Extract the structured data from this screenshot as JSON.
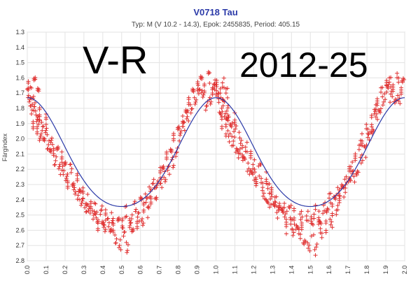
{
  "chart_data": {
    "type": "scatter",
    "title": "V0718 Tau",
    "subtitle": "Typ: M (V 10.2 - 14.3), Epok: 2455835, Period: 405.15",
    "xlabel": "",
    "ylabel": "Färgindex",
    "xlim": [
      0.0,
      2.0
    ],
    "ylim": [
      2.8,
      1.3
    ],
    "y_inverted": true,
    "x_ticks": [
      "0.0",
      "0.1",
      "0.2",
      "0.3",
      "0.4",
      "0.5",
      "0.6",
      "0.7",
      "0.8",
      "0.9",
      "1.0",
      "1.1",
      "1.2",
      "1.3",
      "1.4",
      "1.5",
      "1.6",
      "1.7",
      "1.8",
      "1.9",
      "2.0"
    ],
    "y_ticks": [
      "1.3",
      "1.4",
      "1.5",
      "1.6",
      "1.7",
      "1.8",
      "1.9",
      "2.0",
      "2.1",
      "2.2",
      "2.3",
      "2.4",
      "2.5",
      "2.6",
      "2.7",
      "2.8"
    ],
    "grid": true,
    "marker_color": "#e03030",
    "fit_color": "#2b3aa8",
    "fit_curve": {
      "mean": 2.13,
      "amplitude": 0.4,
      "max_phase": 0.0,
      "note_phase": "brightest color index near phase 0.0/1.0/2.0, reddest near 0.53/1.53"
    },
    "series": [
      {
        "marker": "+",
        "phases_first_cycle": [
          0.0,
          0.01,
          0.01,
          0.02,
          0.02,
          0.03,
          0.03,
          0.04,
          0.04,
          0.05,
          0.05,
          0.06,
          0.06,
          0.07,
          0.07,
          0.08,
          0.09,
          0.1,
          0.1,
          0.11,
          0.12,
          0.13,
          0.14,
          0.15,
          0.16,
          0.17,
          0.18,
          0.19,
          0.2,
          0.21,
          0.22,
          0.23,
          0.24,
          0.25,
          0.26,
          0.27,
          0.28,
          0.29,
          0.3,
          0.31,
          0.32,
          0.33,
          0.34,
          0.35,
          0.36,
          0.37,
          0.38,
          0.39,
          0.4,
          0.41,
          0.42,
          0.43,
          0.44,
          0.45,
          0.46,
          0.47,
          0.48,
          0.49,
          0.5,
          0.51,
          0.52,
          0.53,
          0.54,
          0.55,
          0.56,
          0.57,
          0.58,
          0.59,
          0.6,
          0.61,
          0.62,
          0.63,
          0.64,
          0.65,
          0.66,
          0.67,
          0.68,
          0.69,
          0.7,
          0.71,
          0.72,
          0.73,
          0.74,
          0.75,
          0.76,
          0.77,
          0.78,
          0.79,
          0.8,
          0.81,
          0.82,
          0.83,
          0.84,
          0.85,
          0.86,
          0.87,
          0.88,
          0.89,
          0.9,
          0.91,
          0.92,
          0.93,
          0.94,
          0.95,
          0.96,
          0.97,
          0.98,
          0.99
        ],
        "values_first_cycle": [
          1.68,
          1.72,
          1.65,
          1.8,
          1.7,
          1.76,
          1.9,
          1.78,
          1.62,
          1.85,
          1.95,
          1.88,
          1.7,
          1.98,
          1.82,
          1.92,
          2.02,
          1.96,
          1.87,
          2.05,
          2.1,
          2.0,
          2.08,
          2.15,
          2.05,
          2.2,
          2.12,
          2.22,
          2.18,
          2.25,
          2.3,
          2.2,
          2.28,
          2.35,
          2.26,
          2.38,
          2.32,
          2.42,
          2.36,
          2.45,
          2.4,
          2.48,
          2.44,
          2.5,
          2.46,
          2.52,
          2.58,
          2.48,
          2.55,
          2.6,
          2.5,
          2.56,
          2.62,
          2.52,
          2.58,
          2.65,
          2.5,
          2.7,
          2.55,
          2.6,
          2.48,
          2.72,
          2.56,
          2.52,
          2.62,
          2.45,
          2.58,
          2.5,
          2.4,
          2.55,
          2.46,
          2.38,
          2.48,
          2.35,
          2.42,
          2.3,
          2.36,
          2.28,
          2.22,
          2.3,
          2.18,
          2.25,
          2.12,
          2.2,
          2.05,
          2.15,
          2.0,
          2.08,
          1.95,
          1.98,
          1.88,
          1.92,
          1.82,
          1.85,
          1.75,
          1.8,
          1.7,
          1.74,
          1.65,
          1.68,
          1.62,
          1.72,
          1.66,
          1.78,
          1.6,
          1.75,
          1.7,
          1.64
        ]
      }
    ]
  },
  "overlay": {
    "left_text": "V-R",
    "right_text": "2012-25"
  }
}
